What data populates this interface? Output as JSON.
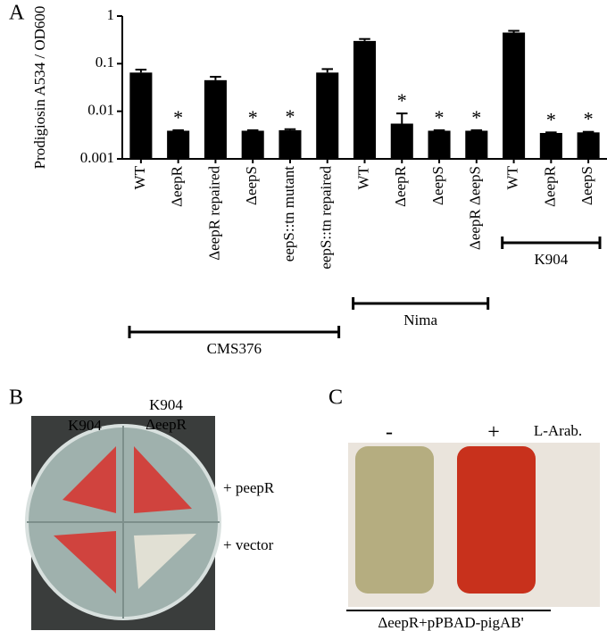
{
  "chart_data": {
    "type": "bar",
    "panel": "A",
    "y_label": "Prodigiosin A534 / OD600",
    "categories": [
      "WT",
      "ΔeepR",
      "ΔeepR repaired",
      "ΔeepS",
      "eepS::tn mutant",
      "eepS::tn repaired",
      "WT",
      "ΔeepR",
      "ΔeepS",
      "ΔeepR ΔeepS",
      "WT",
      "ΔeepR",
      "ΔeepS"
    ],
    "values": [
      0.065,
      0.0039,
      0.045,
      0.0039,
      0.004,
      0.065,
      0.3,
      0.0055,
      0.0039,
      0.0039,
      0.45,
      0.0035,
      0.0036
    ],
    "errors": [
      0.01,
      0.0001,
      0.008,
      0.0001,
      0.0002,
      0.012,
      0.03,
      0.0035,
      0.0001,
      0.0001,
      0.04,
      0.0001,
      0.0001
    ],
    "annotations": [
      null,
      "*",
      null,
      "*",
      "*",
      null,
      null,
      "*",
      "*",
      "*",
      null,
      "*",
      "*"
    ],
    "groups": [
      {
        "label": "CMS376",
        "span": 6
      },
      {
        "label": "Nima",
        "span": 4
      },
      {
        "label": "K904",
        "span": 3
      }
    ],
    "color": "#000000",
    "log_scale": true,
    "ylim": [
      0.001,
      1
    ],
    "yticks": [
      0.001,
      0.01,
      0.1,
      1
    ]
  },
  "panel_b": {
    "letter": "B",
    "col1": "K904",
    "col2_line1": "K904",
    "col2_line2": "ΔeepR",
    "row1": "+ peepR",
    "row2": "+ vector"
  },
  "panel_c": {
    "letter": "C",
    "minus": "-",
    "plus": "+",
    "condition": "L-Arab.",
    "caption": "ΔeepR+pPBAD-pigAB'"
  }
}
